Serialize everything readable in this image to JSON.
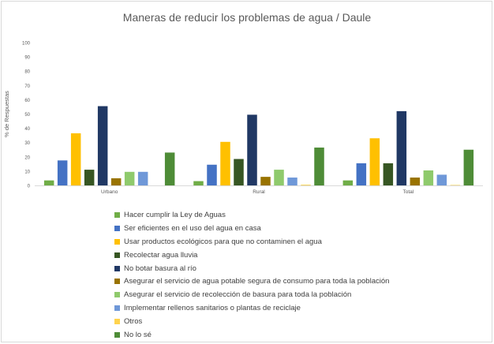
{
  "chart_data": {
    "type": "bar",
    "title": "Maneras de reducir los problemas de agua / Daule",
    "ylabel": "% de Respuestas",
    "xlabel": "",
    "ylim": [
      0,
      100
    ],
    "yticks": [
      0,
      10,
      20,
      30,
      40,
      50,
      60,
      70,
      80,
      90,
      100
    ],
    "grid": false,
    "legend_position": "bottom",
    "categories": [
      "Urbano",
      "Rural",
      "Total"
    ],
    "series": [
      {
        "name": "Hacer cumplir la Ley de Aguas",
        "color": "#70ad47",
        "values": [
          3.5,
          3,
          3.5
        ]
      },
      {
        "name": "Ser eficientes en el uso del agua en casa",
        "color": "#4472c4",
        "values": [
          17.5,
          14.5,
          15.5
        ]
      },
      {
        "name": "Usar productos ecológicos para que no contaminen el agua",
        "color": "#ffc000",
        "values": [
          36.5,
          30.5,
          33
        ]
      },
      {
        "name": "Recolectar agua lluvia",
        "color": "#375623",
        "values": [
          11,
          18.5,
          15.5
        ]
      },
      {
        "name": "No botar basura al río",
        "color": "#203864",
        "values": [
          55.5,
          49.5,
          52
        ]
      },
      {
        "name": "Asegurar el servicio de agua potable segura de consumo para toda la población",
        "color": "#997300",
        "values": [
          5,
          6,
          5.5
        ]
      },
      {
        "name": "Asegurar el servicio de recolección de basura para toda la población",
        "color": "#8fca6c",
        "values": [
          9.5,
          11,
          10.5
        ]
      },
      {
        "name": "Implementar rellenos sanitarios o plantas de reciclaje",
        "color": "#6f98d8",
        "values": [
          9.5,
          5.5,
          7.5
        ]
      },
      {
        "name": "Otros",
        "color": "#ffd34d",
        "values": [
          0,
          0.5,
          0.3
        ]
      },
      {
        "name": "No lo sé",
        "color": "#4e8c37",
        "values": [
          23,
          26.5,
          25
        ]
      }
    ]
  }
}
